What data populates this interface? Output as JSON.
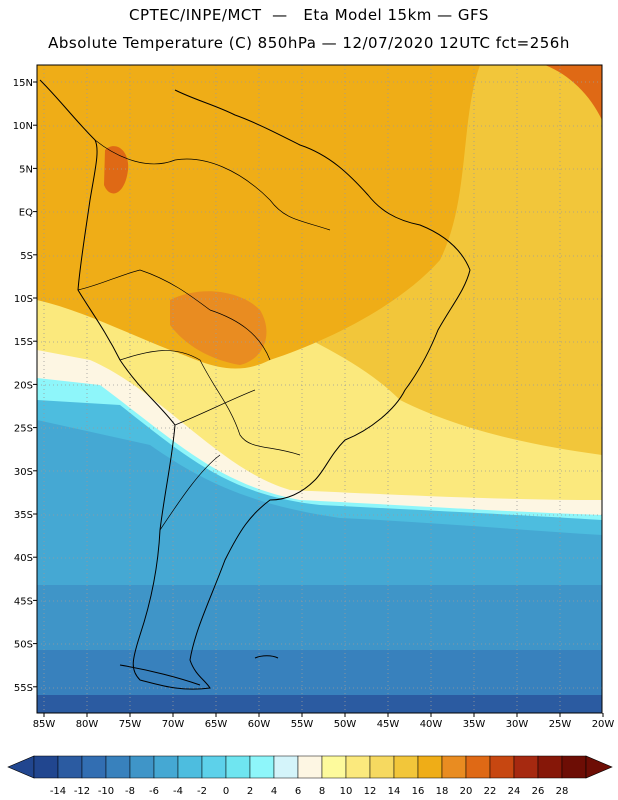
{
  "header": {
    "line1": "CPTEC/INPE/MCT  —   Eta Model 15km — GFS",
    "line2": "Absolute Temperature (C) 850hPa — 12/07/2020 12UTC fct=256h"
  },
  "map": {
    "lat_labels": [
      "15N",
      "10N",
      "5N",
      "EQ",
      "5S",
      "10S",
      "15S",
      "20S",
      "25S",
      "30S",
      "35S",
      "40S",
      "45S",
      "50S",
      "55S"
    ],
    "lon_labels": [
      "85W",
      "80W",
      "75W",
      "70W",
      "65W",
      "60W",
      "55W",
      "50W",
      "45W",
      "40W",
      "35W",
      "30W",
      "25W",
      "20W"
    ],
    "lat_range": [
      16.5,
      -57.5
    ],
    "lon_range": [
      -86,
      -20
    ]
  },
  "colorbar": {
    "ticks": [
      "-14",
      "-12",
      "-10",
      "-8",
      "-6",
      "-4",
      "-2",
      "0",
      "2",
      "4",
      "6",
      "8",
      "10",
      "12",
      "14",
      "16",
      "18",
      "20",
      "22",
      "24",
      "26",
      "28"
    ],
    "colors": [
      "#21468f",
      "#2b5ba1",
      "#326eb2",
      "#3881bd",
      "#3f95c8",
      "#45a8d3",
      "#4dbddf",
      "#5dd1ea",
      "#6fe5f0",
      "#8ef6fa",
      "#d4f4fa",
      "#fdf6e3",
      "#fdfa9c",
      "#fbe97d",
      "#f6d960",
      "#f2c63a",
      "#efad17",
      "#e98c21",
      "#df6915",
      "#c74711",
      "#a62910",
      "#861708",
      "#6d0d05"
    ]
  }
}
